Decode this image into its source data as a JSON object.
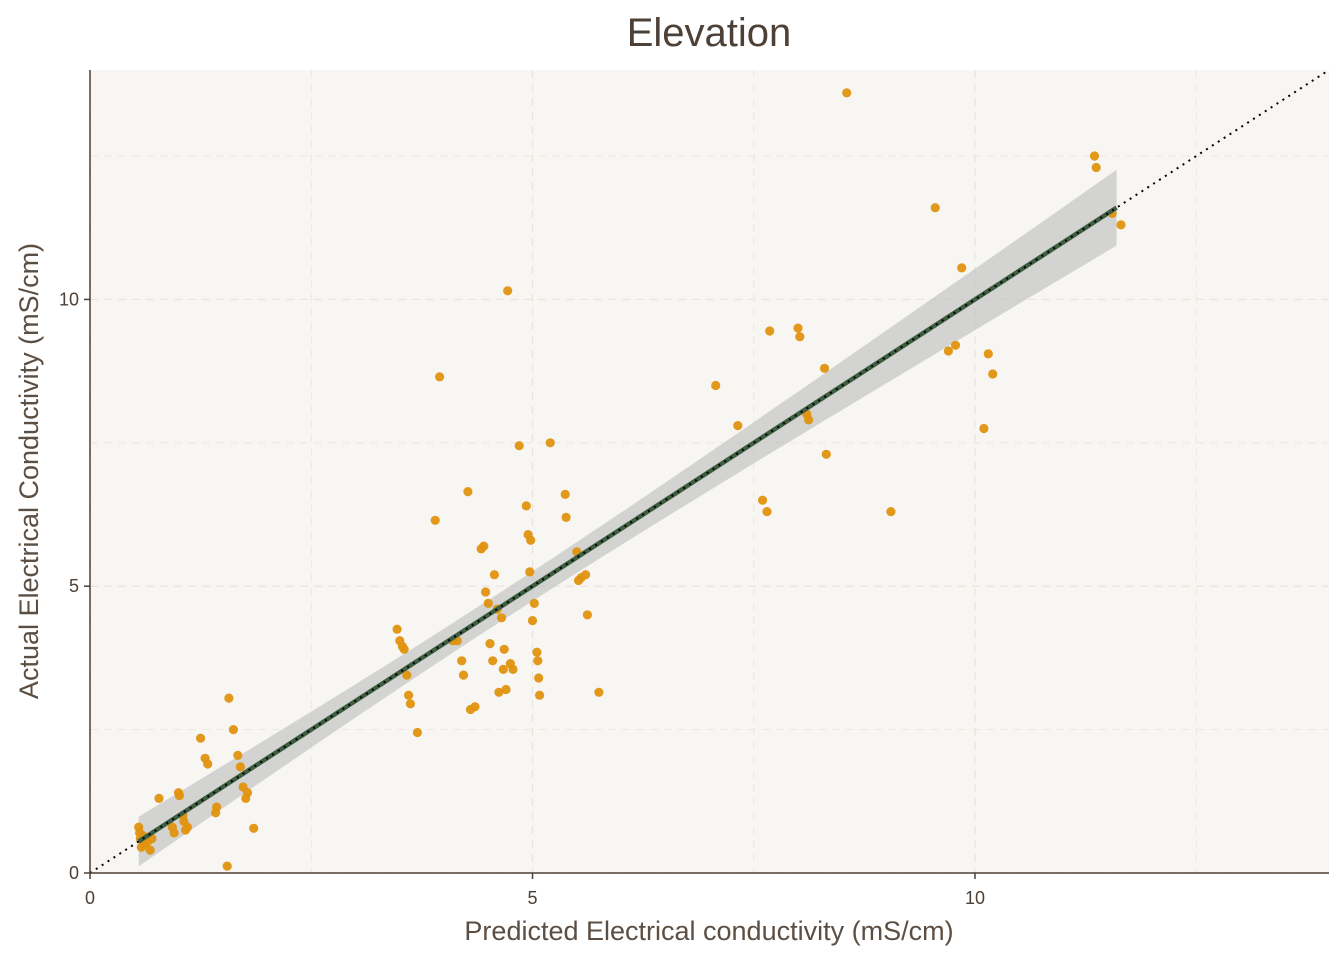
{
  "chart_data": {
    "type": "scatter",
    "title": "Elevation",
    "xlabel": "Predicted Electrical conductivity (mS/cm)",
    "ylabel": "Actual Electrical Conductivity (mS/cm)",
    "xlim": [
      0,
      14
    ],
    "ylim": [
      0,
      14
    ],
    "x_ticks": [
      0,
      5,
      10
    ],
    "y_ticks": [
      0,
      5,
      10
    ],
    "grid": true,
    "colors": {
      "panel_background": "#f8f6f2",
      "grid": "#e9e4dc",
      "points": "#e0920f",
      "fit_line": "#3e5e41",
      "confidence_band": "#bdbdbd",
      "identity_line": "#000000",
      "axis": "#4d4036"
    },
    "reference_line": {
      "type": "identity",
      "slope": 1,
      "intercept": 0,
      "style": "dotted"
    },
    "fit": {
      "method": "lm",
      "x_range": [
        0.55,
        11.6
      ],
      "y_range": [
        0.55,
        11.6
      ],
      "confidence_band": true
    },
    "series": [
      {
        "points": [
          [
            0.55,
            0.8
          ],
          [
            0.56,
            0.7
          ],
          [
            0.57,
            0.6
          ],
          [
            0.58,
            0.45
          ],
          [
            0.6,
            0.65
          ],
          [
            0.62,
            0.5
          ],
          [
            0.65,
            0.55
          ],
          [
            0.68,
            0.4
          ],
          [
            0.7,
            0.6
          ],
          [
            0.78,
            1.3
          ],
          [
            0.93,
            0.8
          ],
          [
            0.95,
            0.7
          ],
          [
            1.0,
            1.4
          ],
          [
            1.01,
            1.35
          ],
          [
            1.05,
            1.0
          ],
          [
            1.06,
            0.9
          ],
          [
            1.08,
            0.75
          ],
          [
            1.1,
            0.8
          ],
          [
            1.25,
            2.35
          ],
          [
            1.3,
            2.0
          ],
          [
            1.33,
            1.9
          ],
          [
            1.42,
            1.05
          ],
          [
            1.43,
            1.15
          ],
          [
            1.55,
            0.12
          ],
          [
            1.57,
            3.05
          ],
          [
            1.62,
            2.5
          ],
          [
            1.67,
            2.05
          ],
          [
            1.7,
            1.85
          ],
          [
            1.73,
            1.5
          ],
          [
            1.76,
            1.3
          ],
          [
            1.78,
            1.4
          ],
          [
            1.85,
            0.78
          ],
          [
            3.47,
            4.25
          ],
          [
            3.5,
            4.05
          ],
          [
            3.53,
            3.95
          ],
          [
            3.55,
            3.9
          ],
          [
            3.58,
            3.45
          ],
          [
            3.6,
            3.1
          ],
          [
            3.62,
            2.95
          ],
          [
            3.7,
            2.45
          ],
          [
            3.9,
            6.15
          ],
          [
            3.95,
            8.65
          ],
          [
            4.1,
            4.05
          ],
          [
            4.15,
            4.05
          ],
          [
            4.2,
            3.7
          ],
          [
            4.22,
            3.45
          ],
          [
            4.27,
            6.65
          ],
          [
            4.3,
            2.85
          ],
          [
            4.35,
            2.9
          ],
          [
            4.42,
            5.65
          ],
          [
            4.45,
            5.7
          ],
          [
            4.47,
            4.9
          ],
          [
            4.5,
            4.7
          ],
          [
            4.52,
            4.0
          ],
          [
            4.55,
            3.7
          ],
          [
            4.57,
            5.2
          ],
          [
            4.6,
            4.6
          ],
          [
            4.62,
            3.15
          ],
          [
            4.65,
            4.45
          ],
          [
            4.67,
            3.55
          ],
          [
            4.68,
            3.9
          ],
          [
            4.7,
            3.2
          ],
          [
            4.72,
            10.15
          ],
          [
            4.75,
            3.65
          ],
          [
            4.78,
            3.55
          ],
          [
            4.85,
            7.45
          ],
          [
            4.93,
            6.4
          ],
          [
            4.95,
            5.9
          ],
          [
            4.97,
            5.25
          ],
          [
            4.98,
            5.8
          ],
          [
            5.0,
            4.4
          ],
          [
            5.02,
            4.7
          ],
          [
            5.05,
            3.85
          ],
          [
            5.06,
            3.7
          ],
          [
            5.07,
            3.4
          ],
          [
            5.08,
            3.1
          ],
          [
            5.2,
            7.5
          ],
          [
            5.37,
            6.6
          ],
          [
            5.38,
            6.2
          ],
          [
            5.5,
            5.6
          ],
          [
            5.52,
            5.1
          ],
          [
            5.55,
            5.15
          ],
          [
            5.6,
            5.2
          ],
          [
            5.62,
            4.5
          ],
          [
            5.75,
            3.15
          ],
          [
            7.07,
            8.5
          ],
          [
            7.32,
            7.8
          ],
          [
            7.6,
            6.5
          ],
          [
            7.65,
            6.3
          ],
          [
            7.68,
            9.45
          ],
          [
            8.0,
            9.5
          ],
          [
            8.02,
            9.35
          ],
          [
            8.1,
            8.0
          ],
          [
            8.12,
            7.9
          ],
          [
            8.3,
            8.8
          ],
          [
            8.32,
            7.3
          ],
          [
            8.55,
            13.6
          ],
          [
            9.05,
            6.3
          ],
          [
            9.55,
            11.6
          ],
          [
            9.7,
            9.1
          ],
          [
            9.78,
            9.2
          ],
          [
            9.85,
            10.55
          ],
          [
            10.1,
            7.75
          ],
          [
            10.15,
            9.05
          ],
          [
            10.2,
            8.7
          ],
          [
            11.35,
            12.5
          ],
          [
            11.37,
            12.3
          ],
          [
            11.55,
            11.5
          ],
          [
            11.65,
            11.3
          ]
        ]
      }
    ]
  }
}
